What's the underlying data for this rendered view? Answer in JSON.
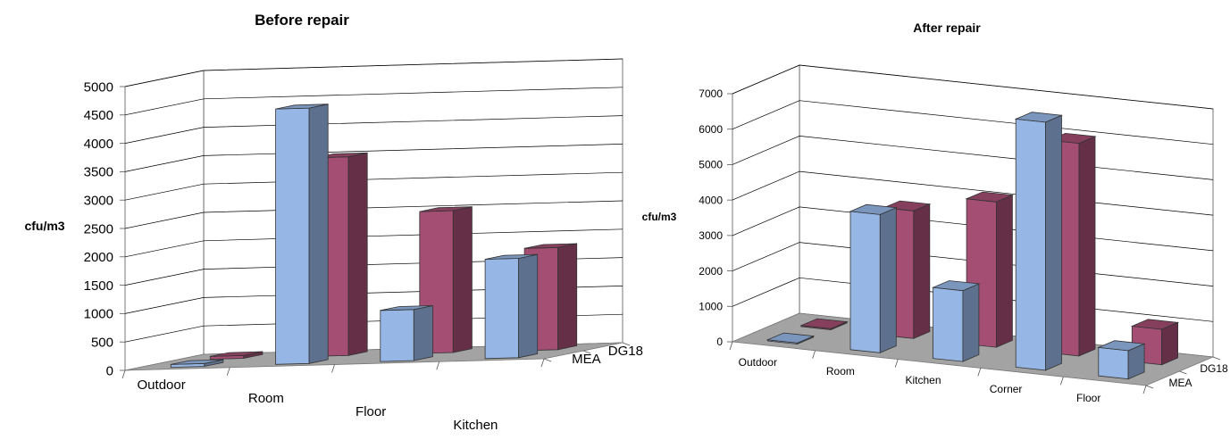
{
  "chart_data": [
    {
      "type": "bar",
      "title": "Before repair",
      "ylabel": "cfu/m3",
      "xlabel": "",
      "categories": [
        "Outdoor",
        "Room",
        "Floor",
        "Kitchen"
      ],
      "series_depth_labels": [
        "DG18",
        "MEA"
      ],
      "ylim": [
        0,
        5000
      ],
      "yticks": [
        0,
        500,
        1000,
        1500,
        2000,
        2500,
        3000,
        3500,
        4000,
        4500,
        5000
      ],
      "grid": true,
      "series": [
        {
          "name": "MEA",
          "values": [
            50,
            4500,
            900,
            1750
          ]
        },
        {
          "name": "DG18",
          "values": [
            50,
            3500,
            2500,
            1800
          ]
        }
      ]
    },
    {
      "type": "bar",
      "title": "After repair",
      "ylabel": "cfu/m3",
      "xlabel": "",
      "categories": [
        "Outdoor",
        "Room",
        "Kitchen",
        "Corner",
        "Floor"
      ],
      "series_depth_labels": [
        "DG18",
        "MEA"
      ],
      "ylim": [
        0,
        7000
      ],
      "yticks": [
        0,
        1000,
        2000,
        3000,
        4000,
        5000,
        6000,
        7000
      ],
      "grid": true,
      "series": [
        {
          "name": "MEA",
          "values": [
            30,
            3900,
            2000,
            7000,
            800
          ]
        },
        {
          "name": "DG18",
          "values": [
            30,
            3600,
            4100,
            6000,
            1000
          ]
        }
      ]
    }
  ],
  "colors": {
    "mea": "#96b7e6",
    "dg18": "#a34e72",
    "floor": "#a3a3a3",
    "grid": "#000000"
  }
}
